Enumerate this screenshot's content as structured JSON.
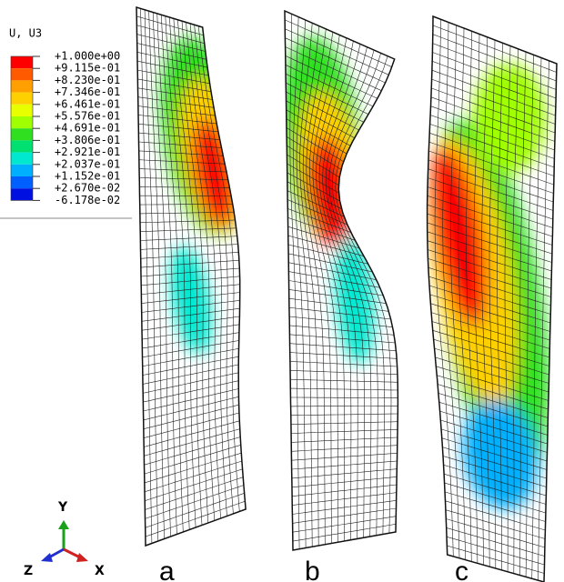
{
  "legend": {
    "title": "U, U3",
    "labels": [
      "+1.000e+00",
      "+9.115e-01",
      "+8.230e-01",
      "+7.346e-01",
      "+6.461e-01",
      "+5.576e-01",
      "+4.691e-01",
      "+3.806e-01",
      "+2.921e-01",
      "+2.037e-01",
      "+1.152e-01",
      "+2.670e-02",
      "-6.178e-02"
    ]
  },
  "panels": [
    {
      "label": "a"
    },
    {
      "label": "b"
    },
    {
      "label": "c"
    }
  ],
  "triad": {
    "y": "Y",
    "z": "Z",
    "x": "X"
  }
}
